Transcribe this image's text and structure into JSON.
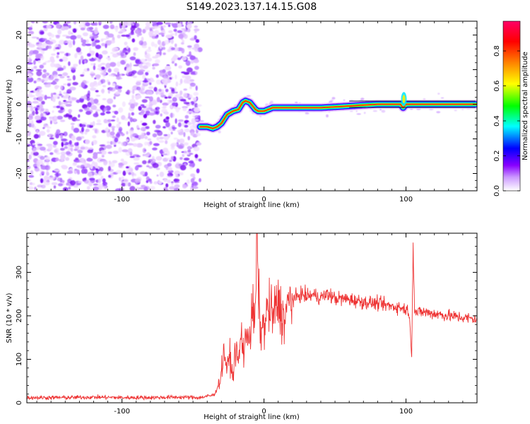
{
  "figure": {
    "title": "S149.2023.137.14.15.G08"
  },
  "chart_data": [
    {
      "type": "heatmap",
      "xlabel": "Height of straight line (km)",
      "ylabel": "Frequency (Hz)",
      "xlim": [
        -167,
        150
      ],
      "ylim": [
        -25,
        24
      ],
      "xticks": [
        -100,
        0,
        100
      ],
      "yticks": [
        -20,
        -10,
        0,
        10,
        20
      ],
      "noise_region_x": [
        -167,
        -45
      ],
      "ridge_line": {
        "x": [
          -45,
          -40,
          -36,
          -33,
          -30,
          -26,
          -22,
          -18,
          -15,
          -13,
          -10,
          -8,
          -6,
          -4,
          0,
          3,
          6,
          10,
          20,
          40,
          60,
          80,
          96,
          98,
          100,
          120,
          150
        ],
        "y": [
          -6.5,
          -6.5,
          -7,
          -6.5,
          -5.5,
          -3,
          -2,
          -1.5,
          0.5,
          1,
          0.5,
          -0.5,
          -1.5,
          -2,
          -2,
          -1.5,
          -1,
          -1,
          -1,
          -1,
          -0.5,
          0,
          0,
          -1,
          0,
          0,
          0
        ]
      },
      "colorbar": {
        "label": "Normalized spectral amplitude",
        "ticks": [
          0.0,
          0.2,
          0.4,
          0.6,
          0.8
        ],
        "colors": [
          "#ffffff",
          "#8800ff",
          "#0000ff",
          "#00ffff",
          "#00ff00",
          "#ffff00",
          "#ff8800",
          "#ff0000",
          "#ff0066"
        ]
      }
    },
    {
      "type": "line",
      "xlabel": "Height of straight line (km)",
      "ylabel": "SNR (10 * v/v)",
      "xlim": [
        -167,
        150
      ],
      "ylim": [
        0,
        390
      ],
      "xticks": [
        -100,
        0,
        100
      ],
      "yticks": [
        0,
        100,
        200,
        300
      ],
      "color": "#ee3333",
      "series": [
        {
          "x": [
            -167,
            -140,
            -120,
            -100,
            -80,
            -60,
            -45,
            -35,
            -31,
            -28,
            -26,
            -24,
            -22,
            -20,
            -18,
            -16,
            -14,
            -12,
            -10,
            -8,
            -6,
            -5,
            -3,
            0,
            3,
            6,
            10,
            14,
            18,
            22,
            26,
            30,
            35,
            40,
            45,
            50,
            60,
            70,
            80,
            90,
            95,
            100,
            102,
            104,
            105,
            106,
            108,
            110,
            120,
            130,
            140,
            150
          ],
          "y": [
            12,
            12,
            13,
            12,
            12,
            13,
            12,
            18,
            50,
            120,
            75,
            110,
            55,
            130,
            90,
            160,
            110,
            175,
            150,
            210,
            190,
            385,
            170,
            175,
            220,
            200,
            230,
            190,
            235,
            240,
            250,
            245,
            248,
            242,
            250,
            240,
            238,
            232,
            228,
            222,
            220,
            215,
            212,
            110,
            375,
            215,
            205,
            210,
            205,
            200,
            196,
            192
          ]
        }
      ]
    }
  ]
}
